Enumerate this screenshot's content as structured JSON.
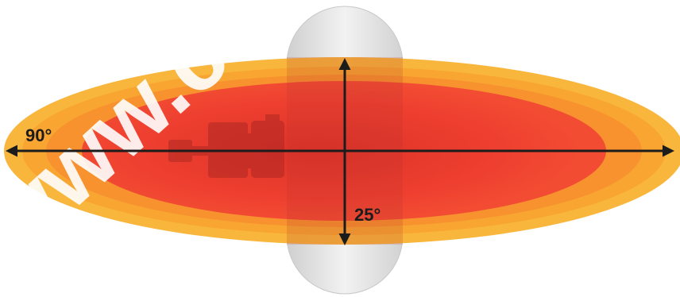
{
  "diagram": {
    "horizontal_angle_label": "90°",
    "vertical_angle_label": "25°",
    "watermark_text": "www.c",
    "colors": {
      "outer_band": "#f9b233",
      "middle_band": "#f7902f",
      "inner_core": "#f0412f",
      "arrow": "#1c1c1c",
      "pill": "#d9d9d9"
    },
    "icons": [
      "double-arrow-horizontal-icon",
      "double-arrow-vertical-icon",
      "camera-silhouette-icon"
    ]
  }
}
